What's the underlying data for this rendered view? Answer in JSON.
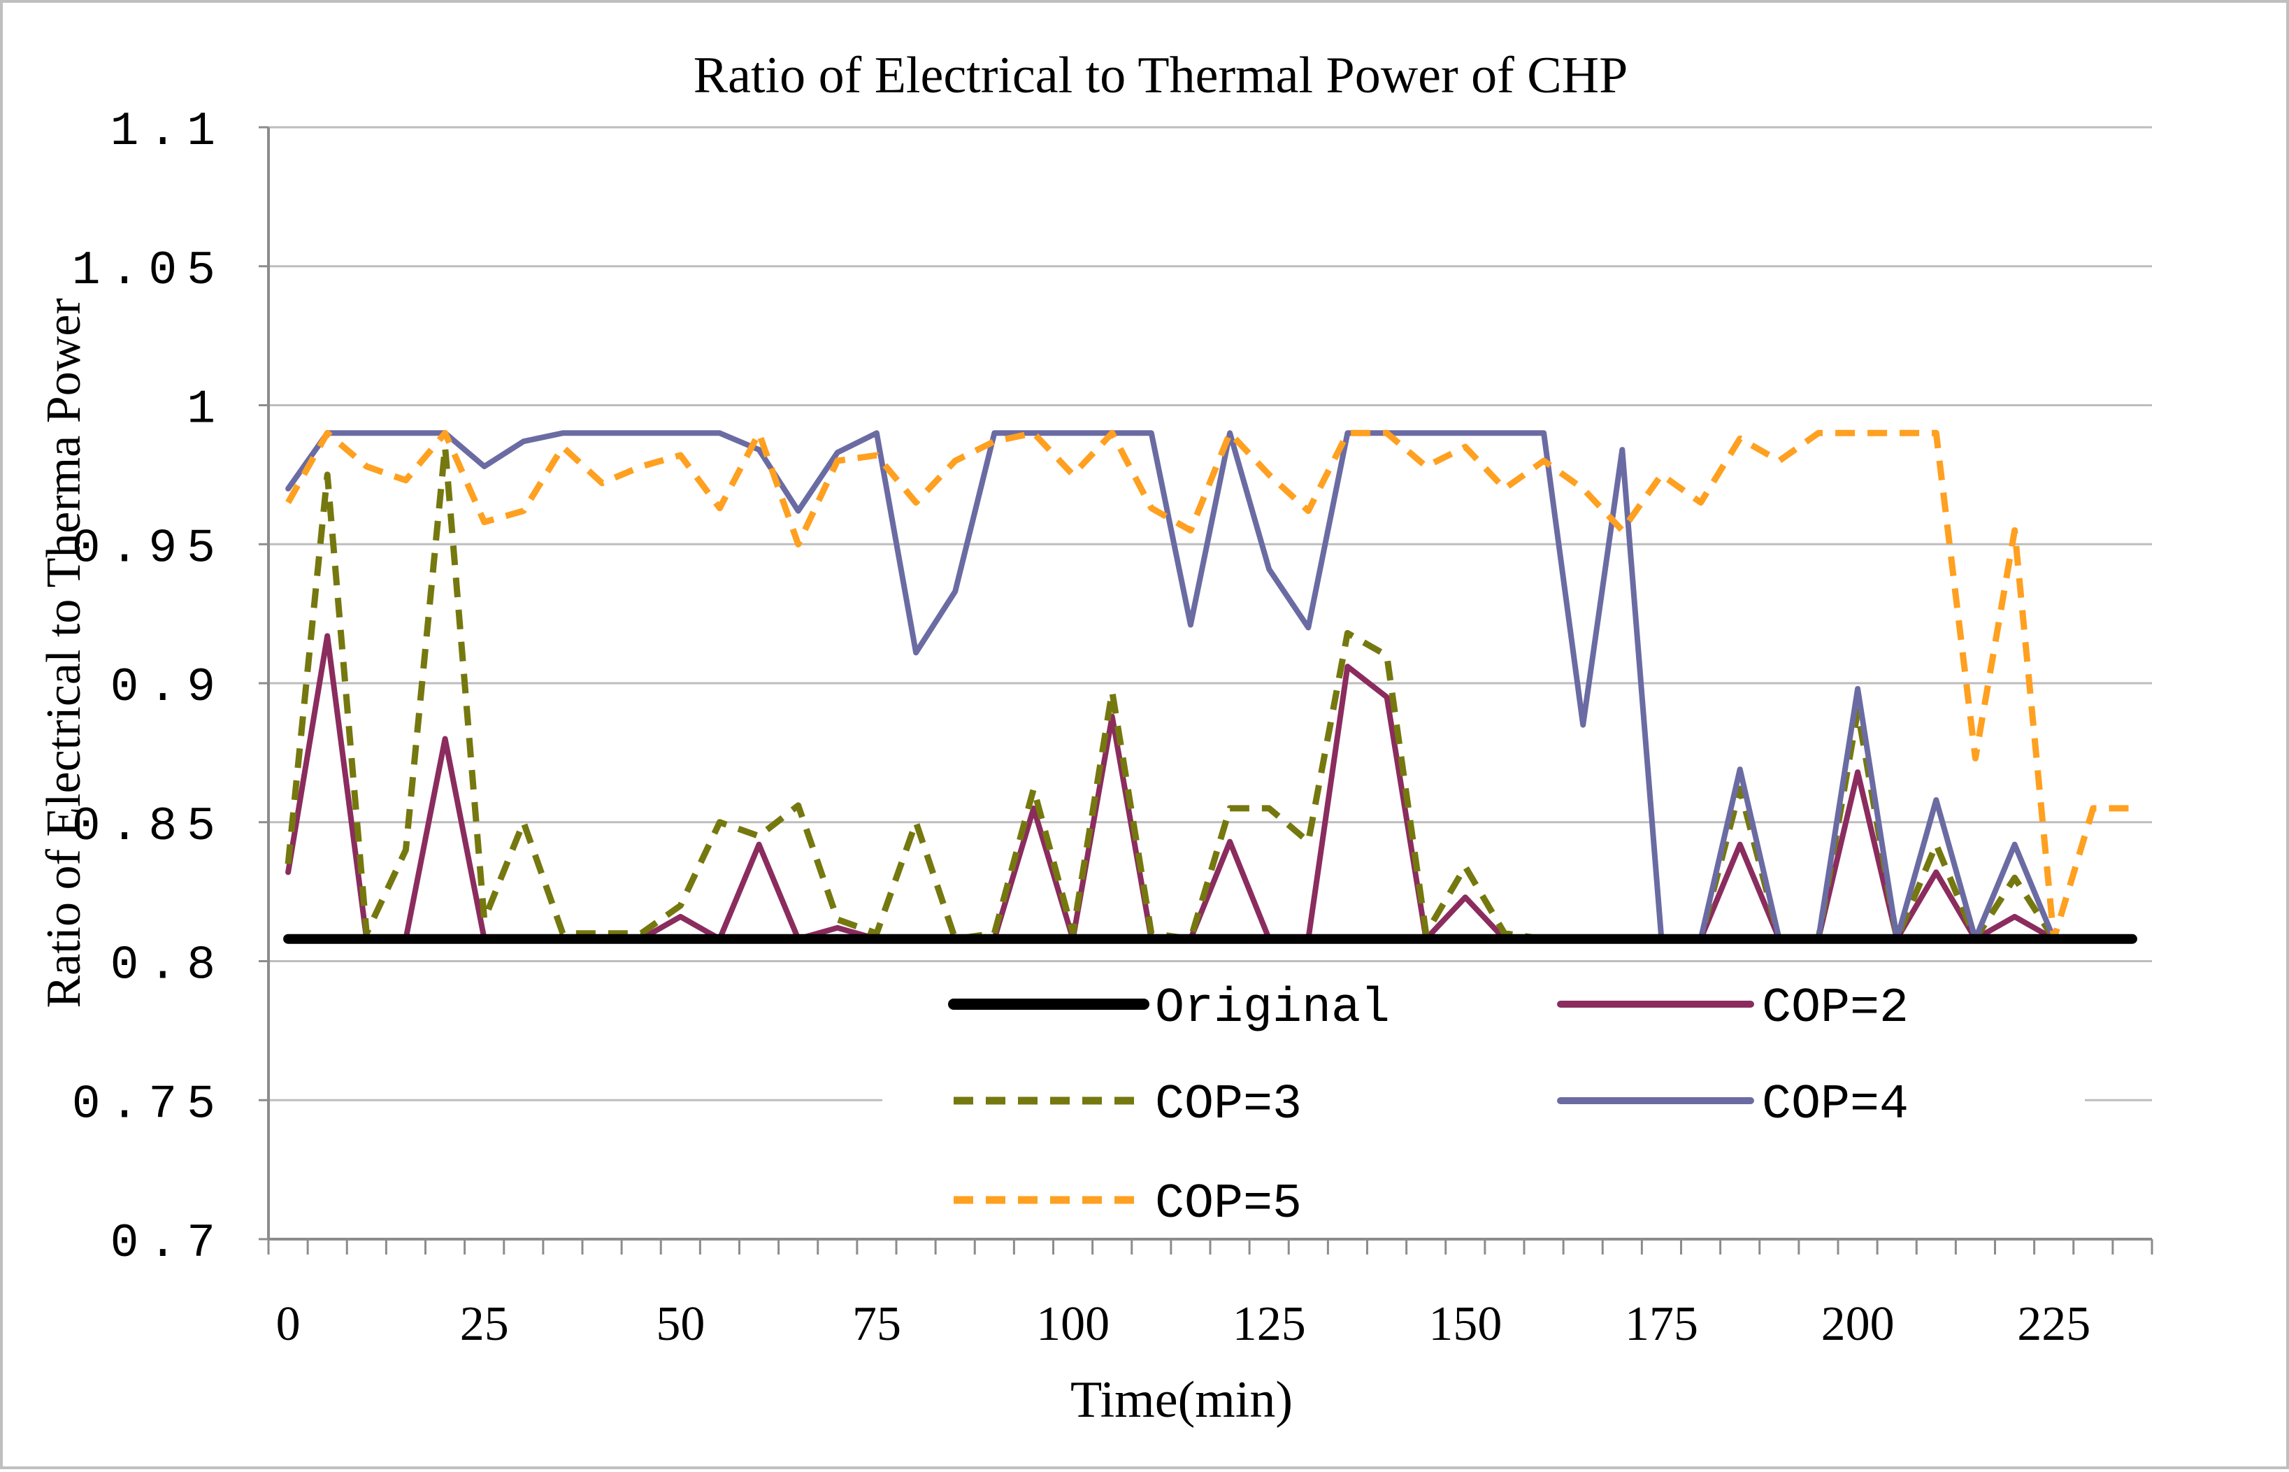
{
  "chart_data": {
    "type": "line",
    "title": "Ratio of  Electrical to Thermal Power of CHP",
    "xlabel": "Time(min)",
    "ylabel": "Ratio of  Electrical to Therma Power",
    "ylim": [
      0.7,
      1.1
    ],
    "xlim": [
      -2.5,
      237.5
    ],
    "yticks": [
      0.7,
      0.75,
      0.8,
      0.85,
      0.9,
      0.95,
      1,
      1.05,
      1.1
    ],
    "ytick_labels": [
      "0.7",
      "0.75",
      "0.8",
      "0.85",
      "0.9",
      "0.95",
      "1",
      "1.05",
      "1.1"
    ],
    "xticks": [
      0,
      25,
      50,
      75,
      100,
      125,
      150,
      175,
      200,
      225
    ],
    "xtick_labels": [
      "0",
      "25",
      "50",
      "75",
      "100",
      "125",
      "150",
      "175",
      "200",
      "225"
    ],
    "grid": true,
    "legend_position": "lower-right",
    "x": [
      0,
      5,
      10,
      15,
      20,
      25,
      30,
      35,
      40,
      45,
      50,
      55,
      60,
      65,
      70,
      75,
      80,
      85,
      90,
      95,
      100,
      105,
      110,
      115,
      120,
      125,
      130,
      135,
      140,
      145,
      150,
      155,
      160,
      165,
      170,
      175,
      180,
      185,
      190,
      195,
      200,
      205,
      210,
      215,
      220,
      225,
      230,
      235
    ],
    "series": [
      {
        "name": "Original",
        "color": "#000000",
        "style": "solid",
        "width": 14,
        "values": [
          0.808,
          0.808,
          0.808,
          0.808,
          0.808,
          0.808,
          0.808,
          0.808,
          0.808,
          0.808,
          0.808,
          0.808,
          0.808,
          0.808,
          0.808,
          0.808,
          0.808,
          0.808,
          0.808,
          0.808,
          0.808,
          0.808,
          0.808,
          0.808,
          0.808,
          0.808,
          0.808,
          0.808,
          0.808,
          0.808,
          0.808,
          0.808,
          0.808,
          0.808,
          0.808,
          0.808,
          0.808,
          0.808,
          0.808,
          0.808,
          0.808,
          0.808,
          0.808,
          0.808,
          0.808,
          0.808,
          0.808,
          0.808
        ]
      },
      {
        "name": "COP=2",
        "color": "#8b2c5e",
        "style": "solid",
        "width": 8,
        "values": [
          0.832,
          0.917,
          0.808,
          0.808,
          0.88,
          0.808,
          0.808,
          0.808,
          0.808,
          0.808,
          0.816,
          0.808,
          0.842,
          0.808,
          0.812,
          0.808,
          0.808,
          0.808,
          0.808,
          0.855,
          0.808,
          0.888,
          0.808,
          0.808,
          0.843,
          0.808,
          0.808,
          0.906,
          0.895,
          0.808,
          0.823,
          0.808,
          0.808,
          0.808,
          0.808,
          0.808,
          0.808,
          0.842,
          0.808,
          0.808,
          0.868,
          0.808,
          0.832,
          0.808,
          0.816,
          0.808,
          0.808,
          0.808
        ]
      },
      {
        "name": "COP=3",
        "color": "#75780e",
        "style": "dashed",
        "width": 9,
        "values": [
          0.835,
          0.975,
          0.81,
          0.84,
          0.985,
          0.815,
          0.85,
          0.81,
          0.81,
          0.81,
          0.82,
          0.85,
          0.845,
          0.856,
          0.815,
          0.81,
          0.85,
          0.808,
          0.81,
          0.862,
          0.81,
          0.897,
          0.81,
          0.808,
          0.855,
          0.855,
          0.843,
          0.918,
          0.91,
          0.81,
          0.834,
          0.81,
          0.808,
          0.808,
          0.808,
          0.808,
          0.808,
          0.862,
          0.808,
          0.808,
          0.89,
          0.808,
          0.842,
          0.808,
          0.83,
          0.808,
          0.808,
          0.808
        ]
      },
      {
        "name": "COP=4",
        "color": "#6b6ba3",
        "style": "solid",
        "width": 8,
        "values": [
          0.97,
          0.99,
          0.99,
          0.99,
          0.99,
          0.978,
          0.987,
          0.99,
          0.99,
          0.99,
          0.99,
          0.99,
          0.984,
          0.962,
          0.983,
          0.99,
          0.911,
          0.933,
          0.99,
          0.99,
          0.99,
          0.99,
          0.99,
          0.921,
          0.99,
          0.941,
          0.92,
          0.99,
          0.99,
          0.99,
          0.99,
          0.99,
          0.99,
          0.885,
          0.984,
          0.808,
          0.808,
          0.869,
          0.808,
          0.808,
          0.898,
          0.808,
          0.858,
          0.808,
          0.842,
          0.808,
          0.808,
          0.808
        ]
      },
      {
        "name": "COP=5",
        "color": "#ffa020",
        "style": "dashed",
        "width": 9,
        "values": [
          0.965,
          0.99,
          0.978,
          0.973,
          0.99,
          0.958,
          0.962,
          0.985,
          0.972,
          0.978,
          0.982,
          0.963,
          0.99,
          0.95,
          0.98,
          0.982,
          0.965,
          0.98,
          0.987,
          0.99,
          0.975,
          0.99,
          0.963,
          0.955,
          0.99,
          0.975,
          0.962,
          0.99,
          0.99,
          0.978,
          0.985,
          0.97,
          0.98,
          0.97,
          0.955,
          0.975,
          0.965,
          0.988,
          0.98,
          0.99,
          0.99,
          0.99,
          0.99,
          0.873,
          0.955,
          0.808,
          0.855,
          0.855
        ]
      }
    ]
  }
}
